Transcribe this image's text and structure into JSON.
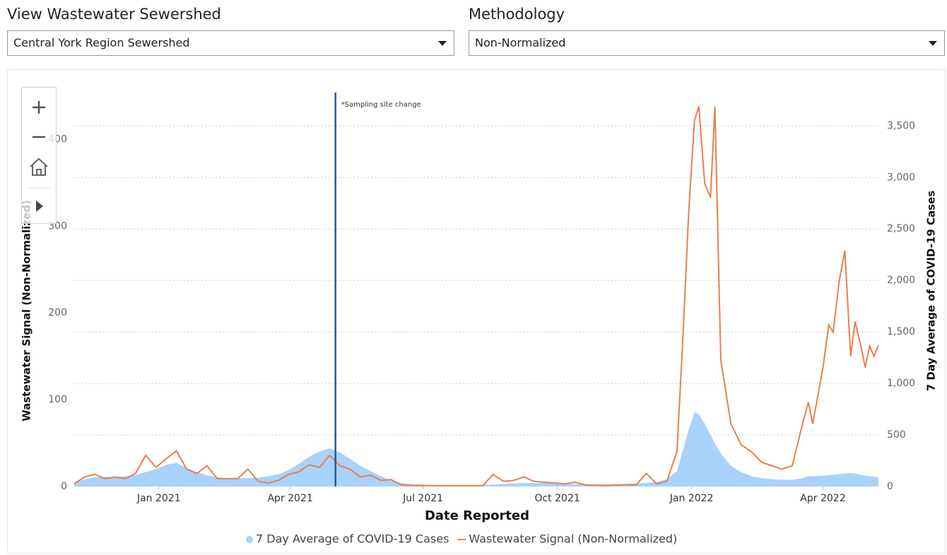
{
  "filters": [
    {
      "label": "View Wastewater Sewershed",
      "selected": "Central York Region Sewershed"
    },
    {
      "label": "Methodology",
      "selected": "Non-Normalized"
    }
  ],
  "chart_data": {
    "type": "line",
    "xlabel": "Date Reported",
    "ylabel": "Wastewater Signal (Non-Normalized)",
    "y2label": "7 Day Average of COVID-19 Cases",
    "annotations": [
      {
        "x": "2021-05-02",
        "text": "*Sampling site change",
        "color": "#1f5c99"
      }
    ],
    "xlim": [
      "2020-11-04",
      "2022-05-10"
    ],
    "xticks": [
      {
        "value": "2021-01-01",
        "label": "Jan 2021"
      },
      {
        "value": "2021-04-01",
        "label": "Apr 2021"
      },
      {
        "value": "2021-07-01",
        "label": "Jul 2021"
      },
      {
        "value": "2021-10-01",
        "label": "Oct 2021"
      },
      {
        "value": "2022-01-01",
        "label": "Jan 2022"
      },
      {
        "value": "2022-04-01",
        "label": "Apr 2022"
      }
    ],
    "ylim": [
      0,
      450
    ],
    "yticks": [
      0,
      100,
      200,
      300,
      400
    ],
    "y2lim": [
      0,
      3790
    ],
    "y2ticks": [
      0,
      500,
      {
        "value": 1000,
        "label": "1,000"
      },
      {
        "value": 1500,
        "label": "1,500"
      },
      {
        "value": 2000,
        "label": "2,000"
      },
      {
        "value": 2500,
        "label": "2,500"
      },
      {
        "value": 3000,
        "label": "3,000"
      },
      {
        "value": 3500,
        "label": "3,500"
      }
    ],
    "grid": "y2",
    "legend": "bottom",
    "x": [
      "2020-11-04",
      "2020-11-11",
      "2020-11-18",
      "2020-11-25",
      "2020-12-02",
      "2020-12-09",
      "2020-12-16",
      "2020-12-23",
      "2020-12-30",
      "2021-01-06",
      "2021-01-13",
      "2021-01-20",
      "2021-01-27",
      "2021-02-03",
      "2021-02-10",
      "2021-02-17",
      "2021-02-24",
      "2021-03-03",
      "2021-03-10",
      "2021-03-17",
      "2021-03-24",
      "2021-03-31",
      "2021-04-07",
      "2021-04-14",
      "2021-04-21",
      "2021-04-28",
      "2021-05-05",
      "2021-05-12",
      "2021-05-19",
      "2021-05-26",
      "2021-06-02",
      "2021-06-09",
      "2021-06-16",
      "2021-06-23",
      "2021-07-07",
      "2021-07-21",
      "2021-08-04",
      "2021-08-11",
      "2021-08-18",
      "2021-08-25",
      "2021-09-01",
      "2021-09-08",
      "2021-09-15",
      "2021-09-22",
      "2021-09-29",
      "2021-10-06",
      "2021-10-13",
      "2021-10-20",
      "2021-11-03",
      "2021-11-17",
      "2021-11-24",
      "2021-12-01",
      "2021-12-08",
      "2021-12-15",
      "2021-12-22",
      "2021-12-26",
      "2021-12-30",
      "2022-01-03",
      "2022-01-06",
      "2022-01-10",
      "2022-01-14",
      "2022-01-17",
      "2022-01-21",
      "2022-01-28",
      "2022-02-04",
      "2022-02-11",
      "2022-02-18",
      "2022-02-25",
      "2022-03-04",
      "2022-03-11",
      "2022-03-18",
      "2022-03-22",
      "2022-03-25",
      "2022-04-01",
      "2022-04-05",
      "2022-04-08",
      "2022-04-12",
      "2022-04-16",
      "2022-04-20",
      "2022-04-23",
      "2022-04-27",
      "2022-04-30",
      "2022-05-03",
      "2022-05-06",
      "2022-05-09"
    ],
    "series": [
      {
        "name": "7 Day Average of COVID-19 Cases",
        "color": "#a9d2fb",
        "kind": "area",
        "axis": "y2",
        "values": [
          40,
          70,
          90,
          95,
          90,
          100,
          110,
          140,
          170,
          210,
          230,
          180,
          140,
          110,
          90,
          80,
          80,
          80,
          85,
          100,
          120,
          160,
          220,
          290,
          340,
          370,
          330,
          270,
          200,
          150,
          100,
          60,
          35,
          25,
          15,
          12,
          12,
          15,
          20,
          25,
          30,
          35,
          35,
          35,
          30,
          25,
          25,
          20,
          20,
          25,
          30,
          35,
          45,
          70,
          150,
          350,
          550,
          720,
          700,
          610,
          500,
          420,
          320,
          200,
          140,
          100,
          80,
          70,
          65,
          65,
          80,
          100,
          100,
          105,
          110,
          115,
          120,
          125,
          130,
          125,
          115,
          105,
          100,
          95,
          90
        ]
      },
      {
        "name": "Wastewater Signal (Non-Normalized)",
        "color": "#e5804f",
        "kind": "line",
        "values": [
          3,
          11,
          14,
          9,
          11,
          9,
          15,
          36,
          22,
          32,
          41,
          20,
          15,
          24,
          9,
          9,
          9,
          20,
          6,
          4,
          7,
          14,
          17,
          25,
          22,
          36,
          24,
          20,
          11,
          13,
          7,
          8,
          2,
          1,
          1,
          1,
          1,
          1,
          14,
          6,
          7,
          11,
          6,
          5,
          4,
          3,
          5,
          2,
          1,
          2,
          2,
          15,
          3,
          6,
          40,
          170,
          316,
          422,
          438,
          349,
          333,
          438,
          146,
          72,
          48,
          40,
          28,
          24,
          20,
          24,
          72,
          97,
          72,
          137,
          186,
          178,
          235,
          272,
          150,
          190,
          162,
          137,
          162,
          150,
          163
        ]
      }
    ]
  }
}
